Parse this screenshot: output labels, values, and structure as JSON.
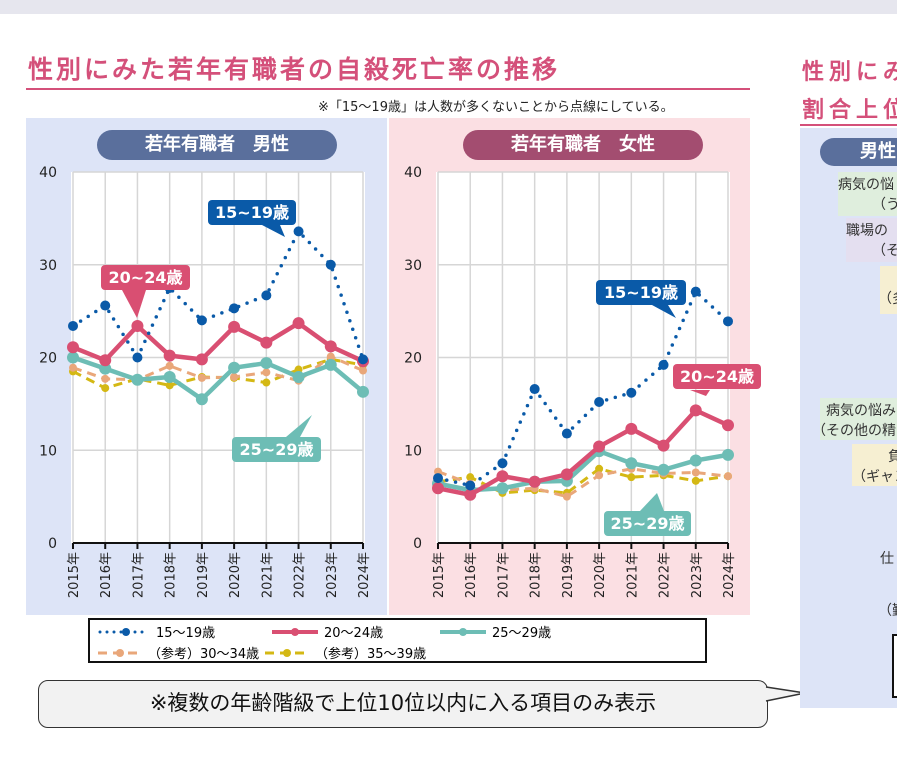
{
  "title": "性別にみた若年有職者の自殺死亡率の推移",
  "note": "※「15〜19歳」は人数が多くないことから点線にしている。",
  "callout": "※複数の年齢階級で上位10位以内に入る項目のみ表示",
  "right": {
    "title_line1": "性別にみ",
    "title_line2": "割合上位",
    "header": "男性",
    "items": [
      "病気の悩",
      "（うつ",
      "職場の",
      "（そ",
      "（多",
      "病気の悩み",
      "（その他の精",
      "負",
      "（ギャン",
      "仕",
      "（勤"
    ]
  },
  "legend": [
    "15〜19歳",
    "20〜24歳",
    "25〜29歳",
    "（参考）30〜34歳",
    "（参考）35〜39歳"
  ],
  "colors": {
    "s15": "#0a5aa8",
    "s20": "#d94f72",
    "s25": "#6dbdb5",
    "s30": "#e9a77a",
    "s35": "#d4b814"
  },
  "chart_data": [
    {
      "type": "line",
      "title": "若年有職者　男性",
      "categories": [
        "2015年",
        "2016年",
        "2017年",
        "2018年",
        "2019年",
        "2020年",
        "2021年",
        "2022年",
        "2023年",
        "2024年"
      ],
      "ylim": [
        0,
        40
      ],
      "yticks": [
        0,
        10,
        20,
        30,
        40
      ],
      "grid": true,
      "series": [
        {
          "name": "15〜19歳",
          "values": [
            23.4,
            25.6,
            20.0,
            27.5,
            24.0,
            25.3,
            26.7,
            33.6,
            30.0,
            19.8
          ]
        },
        {
          "name": "20〜24歳",
          "values": [
            21.1,
            19.7,
            23.4,
            20.2,
            19.8,
            23.3,
            21.6,
            23.7,
            21.2,
            19.6
          ]
        },
        {
          "name": "25〜29歳",
          "values": [
            20.0,
            18.8,
            17.6,
            17.9,
            15.5,
            18.9,
            19.4,
            17.9,
            19.2,
            16.3
          ]
        },
        {
          "name": "（参考）30〜34歳",
          "values": [
            18.9,
            17.7,
            17.6,
            19.1,
            17.8,
            17.9,
            18.4,
            17.5,
            20.1,
            18.6
          ]
        },
        {
          "name": "（参考）35〜39歳",
          "values": [
            18.5,
            16.7,
            17.7,
            17.0,
            17.9,
            17.8,
            17.3,
            18.7,
            19.8,
            19.2
          ]
        }
      ],
      "labels": [
        "15~19歳",
        "20~24歳",
        "25~29歳"
      ]
    },
    {
      "type": "line",
      "title": "若年有職者　女性",
      "categories": [
        "2015年",
        "2016年",
        "2017年",
        "2018年",
        "2019年",
        "2020年",
        "2021年",
        "2022年",
        "2023年",
        "2024年"
      ],
      "ylim": [
        0,
        40
      ],
      "yticks": [
        0,
        10,
        20,
        30,
        40
      ],
      "grid": true,
      "series": [
        {
          "name": "15〜19歳",
          "values": [
            7.0,
            6.2,
            8.6,
            16.6,
            11.8,
            15.2,
            16.2,
            19.2,
            27.1,
            23.9
          ]
        },
        {
          "name": "20〜24歳",
          "values": [
            5.9,
            5.2,
            7.2,
            6.6,
            7.4,
            10.4,
            12.3,
            10.5,
            14.3,
            12.7
          ]
        },
        {
          "name": "25〜29歳",
          "values": [
            6.4,
            5.7,
            5.9,
            6.6,
            6.7,
            9.9,
            8.6,
            7.9,
            8.9,
            9.5
          ]
        },
        {
          "name": "（参考）30〜34歳",
          "values": [
            7.7,
            6.4,
            5.7,
            5.9,
            5.0,
            7.3,
            8.0,
            7.5,
            7.6,
            7.2
          ]
        },
        {
          "name": "（参考）35〜39歳",
          "values": [
            6.6,
            7.1,
            5.4,
            5.7,
            5.4,
            8.0,
            7.1,
            7.3,
            6.7,
            7.2
          ]
        }
      ],
      "labels": [
        "15~19歳",
        "20~24歳",
        "25~29歳"
      ]
    }
  ]
}
